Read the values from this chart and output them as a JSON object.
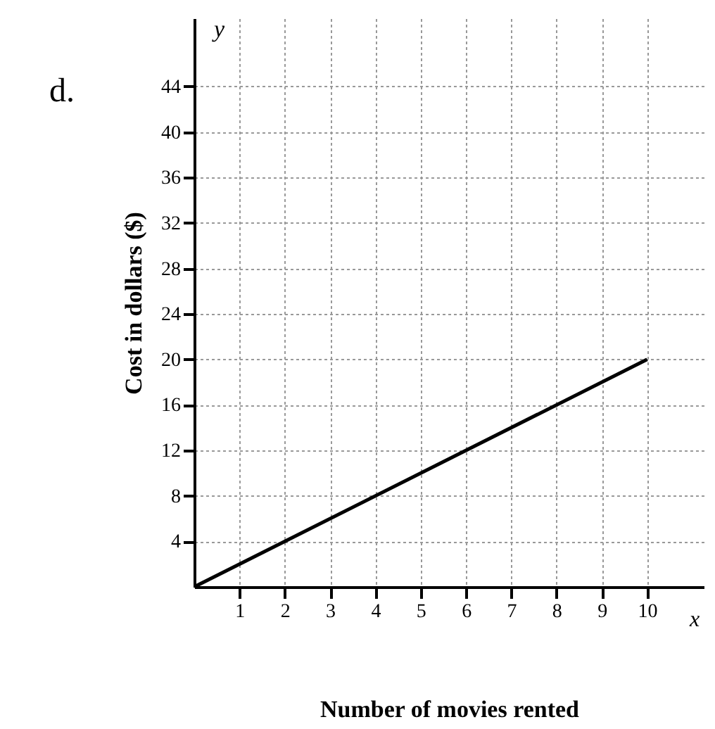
{
  "chart_data": {
    "type": "line",
    "xlabel": "Number of movies rented",
    "ylabel": "Cost in dollars ($)",
    "annotations": [
      "d.",
      "y",
      "x"
    ],
    "x": [
      0,
      10
    ],
    "series": [
      {
        "color": "#000000",
        "values": [
          0,
          20
        ]
      }
    ],
    "xlim": [
      0,
      11.25
    ],
    "ylim": [
      0,
      50
    ],
    "xticks": [
      1,
      2,
      3,
      4,
      5,
      6,
      7,
      8,
      9,
      10
    ],
    "yticks": [
      4,
      8,
      12,
      16,
      20,
      24,
      28,
      32,
      36,
      40,
      44
    ],
    "grid": true,
    "marker": "none",
    "line_style": "solid"
  }
}
